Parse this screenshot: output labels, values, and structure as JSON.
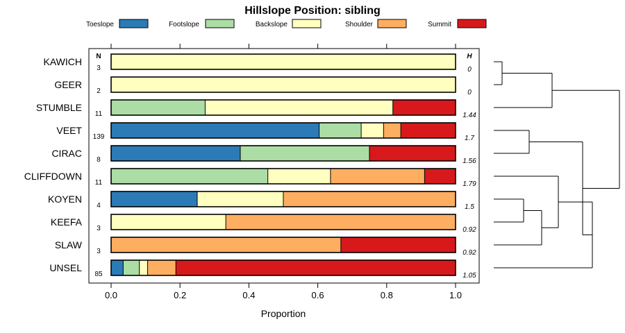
{
  "chart_data": {
    "type": "bar",
    "orientation": "horizontal",
    "stacked": true,
    "title": "Hillslope Position: sibling",
    "xlabel": "Proportion",
    "xlim": [
      0,
      1
    ],
    "xticks": [
      "0.0",
      "0.2",
      "0.4",
      "0.6",
      "0.8",
      "1.0"
    ],
    "n_header": "N",
    "h_header": "H",
    "legend": [
      {
        "name": "Toeslope",
        "color": "#2c7bb6"
      },
      {
        "name": "Footslope",
        "color": "#abdda4"
      },
      {
        "name": "Backslope",
        "color": "#ffffbf"
      },
      {
        "name": "Shoulder",
        "color": "#fdae61"
      },
      {
        "name": "Summit",
        "color": "#d7191c"
      }
    ],
    "rows": [
      {
        "label": "KAWICH",
        "n": "3",
        "h": "0",
        "values": [
          0,
          0,
          1.0,
          0,
          0
        ]
      },
      {
        "label": "GEER",
        "n": "2",
        "h": "0",
        "values": [
          0,
          0,
          1.0,
          0,
          0
        ]
      },
      {
        "label": "STUMBLE",
        "n": "11",
        "h": "1.44",
        "values": [
          0,
          0.273,
          0.545,
          0,
          0.182
        ]
      },
      {
        "label": "VEET",
        "n": "139",
        "h": "1.7",
        "values": [
          0.604,
          0.122,
          0.065,
          0.05,
          0.159
        ]
      },
      {
        "label": "CIRAC",
        "n": "8",
        "h": "1.56",
        "values": [
          0.375,
          0.375,
          0,
          0,
          0.25
        ]
      },
      {
        "label": "CLIFFDOWN",
        "n": "11",
        "h": "1.79",
        "values": [
          0,
          0.455,
          0.182,
          0.273,
          0.09
        ]
      },
      {
        "label": "KOYEN",
        "n": "4",
        "h": "1.5",
        "values": [
          0.25,
          0,
          0.25,
          0.5,
          0
        ]
      },
      {
        "label": "KEEFA",
        "n": "3",
        "h": "0.92",
        "values": [
          0,
          0,
          0.333,
          0.667,
          0
        ]
      },
      {
        "label": "SLAW",
        "n": "3",
        "h": "0.92",
        "values": [
          0,
          0,
          0,
          0.667,
          0.333
        ]
      },
      {
        "label": "UNSEL",
        "n": "85",
        "h": "1.05",
        "values": [
          0.035,
          0.047,
          0.024,
          0.082,
          0.812
        ]
      }
    ],
    "dendrogram": {
      "merges": [
        [
          "KAWICH",
          "GEER"
        ],
        [
          "KAWICH+GEER",
          "STUMBLE"
        ],
        [
          "VEET",
          "CIRAC"
        ],
        [
          "KOYEN",
          "KEEFA"
        ],
        [
          "KOYEN+KEEFA",
          "SLAW"
        ],
        [
          "CLIFFDOWN",
          "KOYEN+KEEFA+SLAW"
        ],
        [
          "CLIFFDOWN+KOYEN+KEEFA+SLAW",
          "UNSEL"
        ],
        [
          "VEET+CIRAC",
          "CLIFFDOWN+KOYEN+KEEFA+SLAW+UNSEL"
        ],
        [
          "KAWICH+GEER+STUMBLE",
          "VEET+CIRAC+CLIFFDOWN+KOYEN+KEEFA+SLAW+UNSEL"
        ]
      ]
    }
  }
}
